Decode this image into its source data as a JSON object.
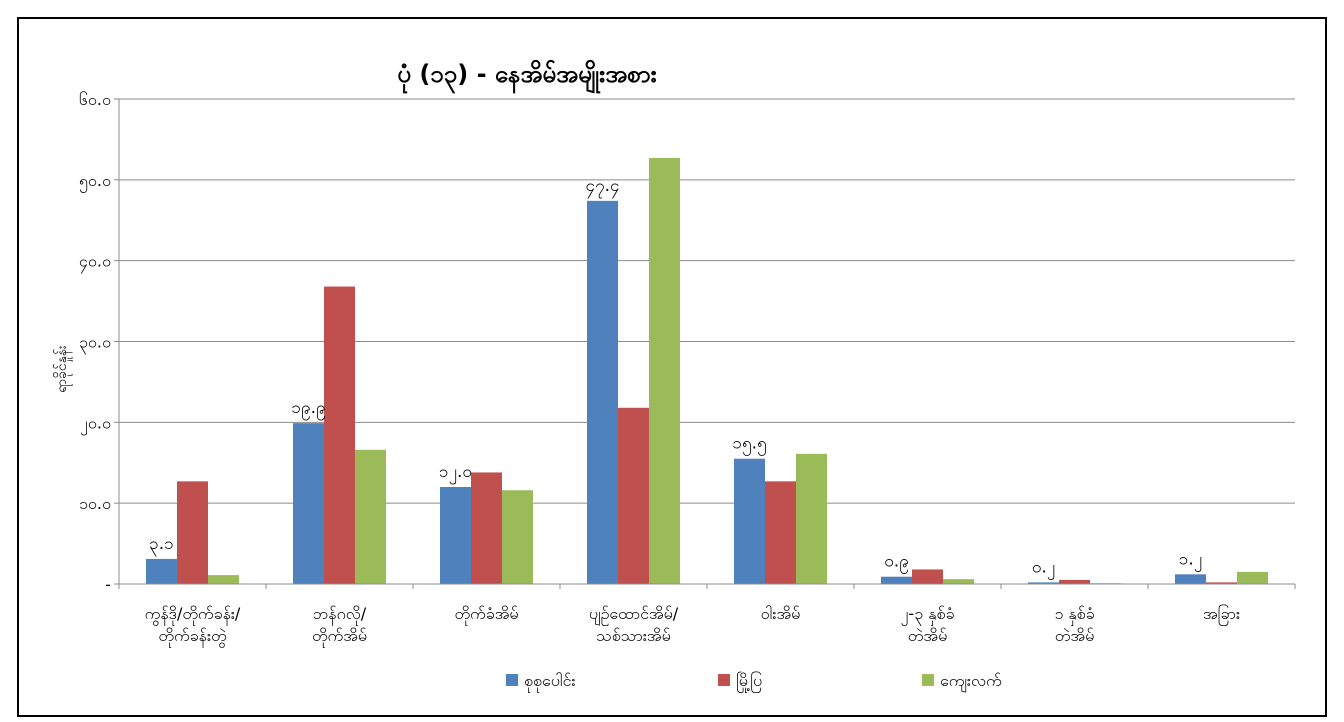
{
  "chart_data": {
    "type": "bar",
    "title": "ပုံ (၁၃) - နေအိမ်အမျိုးအစား",
    "ylabel": "ရာခိုင်နှုန်း",
    "xlabel": "",
    "ylim": [
      0,
      60
    ],
    "yticks": [
      "-",
      "၁၀.၀",
      "၂၀.၀",
      "၃၀.၀",
      "၄၀.၀",
      "၅၀.၀",
      "၆၀.၀"
    ],
    "grid": true,
    "legend_position": "bottom",
    "categories": [
      [
        "ကွန်ဒို/တိုက်ခန်း/",
        "တိုက်ခန်းတွဲ"
      ],
      [
        "ဘန်ဂလို/",
        "တိုက်အိမ်"
      ],
      [
        "တိုက်ခံအိမ်"
      ],
      [
        "ပျဉ်ထောင်အိမ်/",
        "သစ်သားအိမ်"
      ],
      [
        "ဝါးအိမ်"
      ],
      [
        "၂-၃ နှစ်ခံ",
        "တဲအိမ်"
      ],
      [
        "၁ နှစ်ခံ",
        "တဲအိမ်"
      ],
      [
        "အခြား"
      ]
    ],
    "series": [
      {
        "name": "စုစုပေါင်း",
        "color": "#4f81bd",
        "values": [
          3.1,
          19.9,
          12.0,
          47.4,
          15.5,
          0.9,
          0.2,
          1.2
        ]
      },
      {
        "name": "မြို့ပြ",
        "color": "#c0504d",
        "values": [
          12.7,
          36.8,
          13.8,
          21.8,
          12.7,
          1.8,
          0.5,
          0.2
        ]
      },
      {
        "name": "ကျေးလက်",
        "color": "#9bbb59",
        "values": [
          1.1,
          16.6,
          11.6,
          52.7,
          16.1,
          0.6,
          0.1,
          1.5
        ]
      }
    ],
    "data_labels": [
      {
        "category": 0,
        "text": "၃.၁"
      },
      {
        "category": 1,
        "text": "၁၉.၉"
      },
      {
        "category": 2,
        "text": "၁၂.၀"
      },
      {
        "category": 3,
        "text": "၄၇.၄"
      },
      {
        "category": 4,
        "text": "၁၅.၅"
      },
      {
        "category": 5,
        "text": "၀.၉"
      },
      {
        "category": 6,
        "text": "၀.၂"
      },
      {
        "category": 7,
        "text": "၁.၂"
      }
    ]
  }
}
